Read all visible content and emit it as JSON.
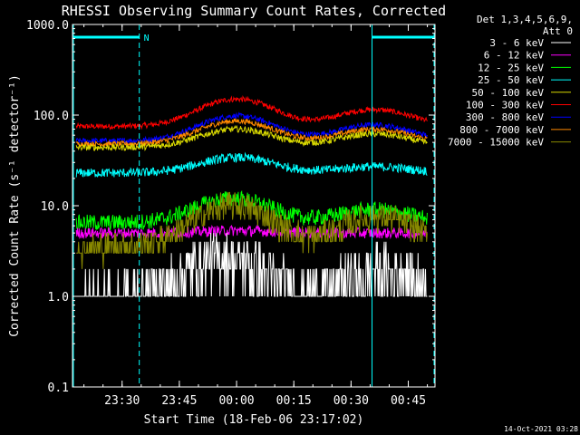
{
  "chart_data": {
    "type": "line",
    "title": "RHESSI Observing Summary Count Rates, Corrected",
    "xlabel": "Start Time (18-Feb-06 23:17:02)",
    "ylabel": "Corrected Count Rate (s⁻¹ detector⁻¹)",
    "yscale": "log",
    "ylim": [
      0.1,
      1000.0
    ],
    "ytick_labels": [
      "0.1",
      "1.0",
      "10.0",
      "100.0",
      "1000.0"
    ],
    "ytick_values": [
      0.1,
      1,
      10,
      100,
      1000
    ],
    "xlim_minutes": [
      0,
      95
    ],
    "xtick_labels": [
      "23:30",
      "23:45",
      "00:00",
      "00:15",
      "00:30",
      "00:45"
    ],
    "xtick_minutes": [
      13,
      28,
      43,
      58,
      73,
      88
    ],
    "legend": {
      "header_line1": "Det 1,3,4,5,6,9,",
      "header_line2": "Att 0",
      "placement": "top-right-outside"
    },
    "series": [
      {
        "name": "3 - 6 keV",
        "color": "#000000"
      },
      {
        "name": "6 - 12 keV",
        "color": "#ff00ff"
      },
      {
        "name": "12 - 25 keV",
        "color": "#00ff00"
      },
      {
        "name": "25 - 50 keV",
        "color": "#00ffff"
      },
      {
        "name": "50 - 100 keV",
        "color": "#d8d800"
      },
      {
        "name": "100 - 300 keV",
        "color": "#ff0000"
      },
      {
        "name": "300 - 800 keV",
        "color": "#0000ff"
      },
      {
        "name": "800 - 7000 keV",
        "color": "#ff8800"
      },
      {
        "name": "7000 - 15000 keV",
        "color": "#888800"
      }
    ],
    "drawn_series": [
      {
        "key": "red",
        "color": "#ff0000",
        "base": 75,
        "peaks": [
          [
            43,
            150
          ],
          [
            79,
            115
          ]
        ],
        "noise": 0.03
      },
      {
        "key": "blue",
        "color": "#0000ff",
        "base": 52,
        "peaks": [
          [
            43,
            98
          ],
          [
            79,
            78
          ]
        ],
        "noise": 0.03
      },
      {
        "key": "orange",
        "color": "#ff8800",
        "base": 48,
        "peaks": [
          [
            43,
            86
          ],
          [
            79,
            70
          ]
        ],
        "noise": 0.03
      },
      {
        "key": "yellow",
        "color": "#d8d800",
        "base": 44,
        "peaks": [
          [
            43,
            70
          ],
          [
            79,
            62
          ]
        ],
        "noise": 0.035
      },
      {
        "key": "cyan",
        "color": "#00ffff",
        "base": 23,
        "peaks": [
          [
            43,
            34
          ],
          [
            79,
            27
          ]
        ],
        "noise": 0.05
      },
      {
        "key": "green",
        "color": "#00ff00",
        "base": 6.5,
        "peaks": [
          [
            42,
            12
          ],
          [
            79,
            9
          ]
        ],
        "noise": 0.09
      },
      {
        "key": "magenta",
        "color": "#ff00ff",
        "base": 5.0,
        "peaks": [
          [
            43,
            5.3
          ]
        ],
        "noise": 0.06
      },
      {
        "key": "olive",
        "color": "#888800",
        "base": 3.5,
        "peaks": [
          [
            42,
            10
          ],
          [
            80,
            7.5
          ]
        ],
        "noise": 0.15
      },
      {
        "key": "white",
        "color": "#ffffff",
        "base": 1.0,
        "peaks": [
          [
            40,
            2.6
          ],
          [
            82,
            1.9
          ]
        ],
        "noise": 0.3
      }
    ],
    "saa_intervals_minutes": [
      [
        -2,
        17.5
      ],
      [
        78.5,
        97
      ]
    ],
    "saa_label": "N",
    "timestamp": "14-Oct-2021 03:28"
  }
}
